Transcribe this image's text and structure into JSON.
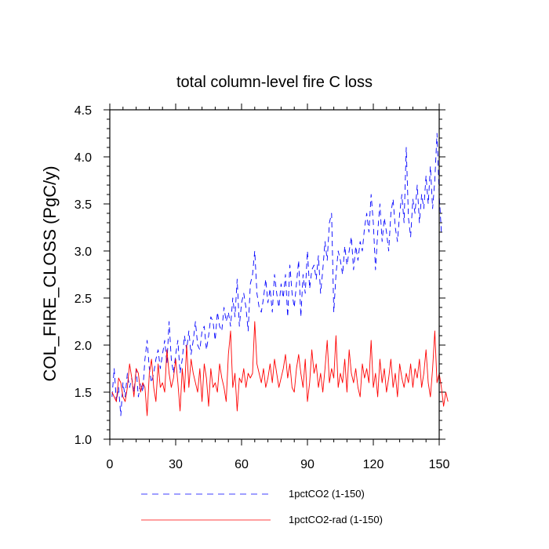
{
  "chart_data": {
    "type": "line",
    "title": "total column-level fire C loss",
    "xlabel": "",
    "ylabel": "COL_FIRE_CLOSS  (PgC/y)",
    "xlim": [
      0,
      150
    ],
    "ylim": [
      1.0,
      4.5
    ],
    "xticks": [
      0,
      30,
      60,
      90,
      120,
      150
    ],
    "yticks": [
      1.0,
      1.5,
      2.0,
      2.5,
      3.0,
      3.5,
      4.0,
      4.5
    ],
    "xtick_labels": [
      "0",
      "30",
      "60",
      "90",
      "120",
      "150"
    ],
    "ytick_labels": [
      "1.0",
      "1.5",
      "2.0",
      "2.5",
      "3.0",
      "3.5",
      "4.0",
      "4.5"
    ],
    "grid": false,
    "legend_position": "bottom",
    "series": [
      {
        "name": "1pctCO2 (1-150)",
        "color": "#0000ff",
        "dash": "dashed",
        "values": [
          1.45,
          1.75,
          1.4,
          1.55,
          1.25,
          1.6,
          1.45,
          1.7,
          1.55,
          1.65,
          1.5,
          1.75,
          1.45,
          1.6,
          1.5,
          1.85,
          2.05,
          1.75,
          1.6,
          1.7,
          1.85,
          1.95,
          1.75,
          1.9,
          2.05,
          1.8,
          2.25,
          1.85,
          1.7,
          1.9,
          2.05,
          1.7,
          1.85,
          2.1,
          1.95,
          2.15,
          1.9,
          2.05,
          2.25,
          2.0,
          1.95,
          2.15,
          2.2,
          1.95,
          2.1,
          2.3,
          2.25,
          2.05,
          2.35,
          2.2,
          2.15,
          2.4,
          2.25,
          2.35,
          2.2,
          2.5,
          2.3,
          2.7,
          2.2,
          2.45,
          2.55,
          2.4,
          2.15,
          2.65,
          2.75,
          3.0,
          2.55,
          2.4,
          2.35,
          2.5,
          2.7,
          2.45,
          2.6,
          2.35,
          2.75,
          2.55,
          2.4,
          2.65,
          2.5,
          2.75,
          2.3,
          2.85,
          2.55,
          2.4,
          2.65,
          2.9,
          2.3,
          2.75,
          2.55,
          3.0,
          2.6,
          2.8,
          2.85,
          2.7,
          2.95,
          2.55,
          2.8,
          3.1,
          2.9,
          3.3,
          3.4,
          2.35,
          2.75,
          3.0,
          2.9,
          2.75,
          3.05,
          2.85,
          3.0,
          3.15,
          2.8,
          3.05,
          2.9,
          3.1,
          3.0,
          3.25,
          3.4,
          3.2,
          3.6,
          3.3,
          2.8,
          3.2,
          3.5,
          3.1,
          3.35,
          3.2,
          3.0,
          3.4,
          3.55,
          3.25,
          3.1,
          3.4,
          3.6,
          3.3,
          4.1,
          3.35,
          3.15,
          3.55,
          3.4,
          3.7,
          3.3,
          3.6,
          3.45,
          3.8,
          3.5,
          3.9,
          3.45,
          3.75,
          4.25,
          3.6,
          3.2
        ]
      },
      {
        "name": "1pctCO2-rad (1-150)",
        "color": "#ff0000",
        "dash": "solid",
        "values": [
          1.5,
          1.45,
          1.4,
          1.65,
          1.6,
          1.45,
          1.4,
          1.55,
          1.8,
          1.65,
          1.45,
          1.75,
          1.7,
          1.5,
          1.6,
          1.55,
          1.25,
          1.7,
          1.85,
          1.55,
          1.4,
          1.8,
          1.55,
          1.6,
          1.5,
          1.95,
          1.7,
          1.55,
          1.65,
          1.85,
          1.6,
          1.3,
          1.75,
          1.5,
          2.0,
          1.55,
          1.85,
          1.7,
          1.6,
          1.5,
          1.75,
          1.4,
          1.8,
          1.65,
          1.35,
          1.75,
          1.55,
          1.6,
          1.5,
          1.8,
          1.65,
          1.55,
          1.4,
          1.9,
          2.15,
          1.55,
          1.7,
          1.3,
          1.65,
          1.6,
          1.75,
          1.55,
          1.7,
          1.65,
          1.7,
          2.25,
          1.8,
          1.7,
          1.6,
          1.75,
          1.55,
          1.65,
          1.8,
          1.6,
          1.85,
          1.7,
          1.55,
          1.65,
          1.75,
          1.9,
          1.65,
          1.8,
          1.55,
          1.5,
          1.75,
          1.9,
          1.7,
          1.55,
          1.85,
          1.4,
          1.6,
          1.95,
          1.7,
          1.8,
          1.55,
          1.7,
          1.5,
          1.75,
          2.05,
          1.6,
          1.75,
          1.65,
          2.1,
          1.55,
          1.7,
          1.6,
          1.85,
          1.5,
          1.95,
          1.7,
          1.6,
          1.75,
          1.55,
          1.45,
          1.8,
          1.65,
          1.75,
          1.6,
          2.05,
          1.55,
          1.7,
          1.45,
          1.85,
          1.6,
          1.75,
          1.5,
          1.65,
          1.85,
          1.55,
          1.7,
          1.45,
          1.8,
          1.65,
          1.55,
          1.7,
          1.6,
          1.8,
          1.55,
          1.75,
          1.65,
          1.85,
          1.55,
          1.7,
          1.95,
          1.6,
          1.45,
          1.75,
          2.15,
          1.6,
          1.7,
          1.55,
          1.35,
          1.5,
          1.4
        ]
      }
    ]
  }
}
